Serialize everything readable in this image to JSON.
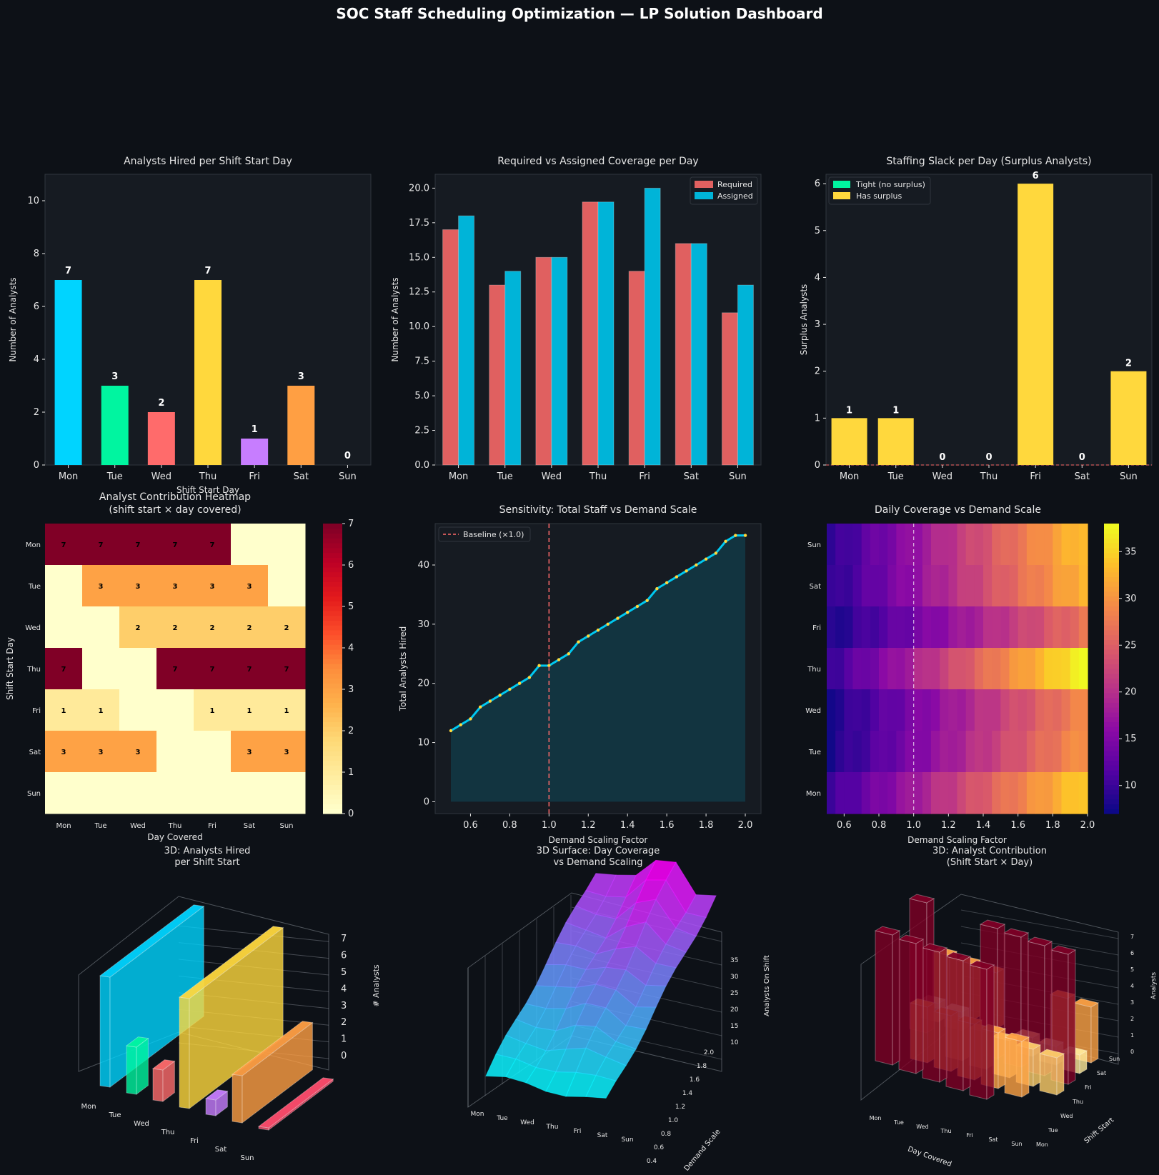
{
  "dashboard": {
    "title": "SOC Staff Scheduling Optimization — LP Solution Dashboard"
  },
  "colors": {
    "background": "#0d1117",
    "panel": "#161b22",
    "grid": "#30363d",
    "text": "#e6e6e6",
    "required": "#e06060",
    "assigned": "#00b4d8",
    "tight": "#00f5a0",
    "surplus": "#ffd83d",
    "sensitivity_line": "#00c8f0",
    "sensitivity_point": "#ffd83d",
    "baseline": "#ff6b6b"
  },
  "chart_data": [
    {
      "id": "hired",
      "type": "bar",
      "title": "Analysts Hired per Shift Start Day",
      "xlabel": "Shift Start Day",
      "ylabel": "Number of Analysts",
      "categories": [
        "Mon",
        "Tue",
        "Wed",
        "Thu",
        "Fri",
        "Sat",
        "Sun"
      ],
      "values": [
        7,
        3,
        2,
        7,
        1,
        3,
        0
      ],
      "bar_colors": [
        "#00d4ff",
        "#00f5a0",
        "#ff6b6b",
        "#ffd83d",
        "#c77dff",
        "#ff9f43",
        "#ff4d6d"
      ],
      "ylim": [
        0,
        11
      ],
      "yticks": [
        0,
        2,
        4,
        6,
        8,
        10
      ]
    },
    {
      "id": "coverage",
      "type": "bar",
      "title": "Required vs Assigned Coverage per Day",
      "xlabel": "",
      "ylabel": "Number of Analysts",
      "categories": [
        "Mon",
        "Tue",
        "Wed",
        "Thu",
        "Fri",
        "Sat",
        "Sun"
      ],
      "series": [
        {
          "name": "Required",
          "values": [
            17,
            13,
            15,
            19,
            14,
            16,
            11
          ]
        },
        {
          "name": "Assigned",
          "values": [
            18,
            14,
            15,
            19,
            20,
            16,
            13
          ]
        }
      ],
      "ylim": [
        0,
        21
      ],
      "yticks": [
        "0.0",
        "2.5",
        "5.0",
        "7.5",
        "10.0",
        "12.5",
        "15.0",
        "17.5",
        "20.0"
      ],
      "legend": "top-right"
    },
    {
      "id": "slack",
      "type": "bar",
      "title": "Staffing Slack per Day (Surplus Analysts)",
      "xlabel": "",
      "ylabel": "Surplus Analysts",
      "categories": [
        "Mon",
        "Tue",
        "Wed",
        "Thu",
        "Fri",
        "Sat",
        "Sun"
      ],
      "values": [
        1,
        1,
        0,
        0,
        6,
        0,
        2
      ],
      "legend_entries": [
        "Tight (no surplus)",
        "Has surplus"
      ],
      "ylim": [
        0,
        6.2
      ],
      "yticks": [
        0,
        1,
        2,
        3,
        4,
        5,
        6
      ],
      "legend": "top-left"
    },
    {
      "id": "heatmap",
      "type": "heatmap",
      "title": "Analyst Contribution Heatmap",
      "subtitle": "(shift start × day covered)",
      "xlabel": "Day Covered",
      "ylabel": "Shift Start Day",
      "x_categories": [
        "Mon",
        "Tue",
        "Wed",
        "Thu",
        "Fri",
        "Sat",
        "Sun"
      ],
      "y_categories": [
        "Mon",
        "Tue",
        "Wed",
        "Thu",
        "Fri",
        "Sat",
        "Sun"
      ],
      "matrix": [
        [
          7,
          7,
          7,
          7,
          7,
          0,
          0
        ],
        [
          0,
          3,
          3,
          3,
          3,
          3,
          0
        ],
        [
          0,
          0,
          2,
          2,
          2,
          2,
          2
        ],
        [
          7,
          0,
          0,
          7,
          7,
          7,
          7
        ],
        [
          1,
          1,
          0,
          0,
          1,
          1,
          1
        ],
        [
          3,
          3,
          3,
          0,
          0,
          3,
          3
        ],
        [
          0,
          0,
          0,
          0,
          0,
          0,
          0
        ]
      ],
      "colorbar_ticks": [
        0,
        1,
        2,
        3,
        4,
        5,
        6,
        7
      ],
      "colormap": "YlOrRd"
    },
    {
      "id": "sensitivity",
      "type": "line",
      "title": "Sensitivity: Total Staff vs Demand Scale",
      "xlabel": "Demand Scaling Factor",
      "ylabel": "Total Analysts Hired",
      "series": [
        {
          "name": "Total Analysts Hired",
          "x": [
            0.5,
            0.55,
            0.6,
            0.65,
            0.7,
            0.75,
            0.8,
            0.85,
            0.9,
            0.95,
            1.0,
            1.05,
            1.1,
            1.15,
            1.2,
            1.25,
            1.3,
            1.35,
            1.4,
            1.45,
            1.5,
            1.55,
            1.6,
            1.65,
            1.7,
            1.75,
            1.8,
            1.85,
            1.9,
            1.95,
            2.0
          ],
          "y": [
            12,
            13,
            14,
            16,
            17,
            18,
            19,
            20,
            21,
            23,
            23,
            24,
            25,
            27,
            28,
            29,
            30,
            31,
            32,
            33,
            34,
            36,
            37,
            38,
            39,
            40,
            41,
            42,
            44,
            45,
            45
          ]
        }
      ],
      "baseline_label": "Baseline (×1.0)",
      "baseline_x": 1.0,
      "xlim": [
        0.42,
        2.08
      ],
      "ylim": [
        -2,
        47
      ],
      "xticks": [
        "0.6",
        "0.8",
        "1.0",
        "1.2",
        "1.4",
        "1.6",
        "1.8",
        "2.0"
      ],
      "yticks": [
        0,
        10,
        20,
        30,
        40
      ],
      "legend": "top-left"
    },
    {
      "id": "coverage_scale",
      "type": "heatmap",
      "title": "Daily Coverage vs Demand Scale",
      "xlabel": "Demand Scaling Factor",
      "ylabel": "",
      "y_categories": [
        "Sun",
        "Sat",
        "Fri",
        "Thu",
        "Wed",
        "Tue",
        "Mon"
      ],
      "xlim": [
        0.5,
        2.0
      ],
      "xticks": [
        "0.6",
        "0.8",
        "1.0",
        "1.2",
        "1.4",
        "1.6",
        "1.8",
        "2.0"
      ],
      "colorbar_ticks": [
        10,
        15,
        20,
        25,
        30,
        35
      ],
      "colorbar_range": [
        7,
        38
      ],
      "colormap": "plasma",
      "baseline_x": 1.0,
      "rows_start": [
        9,
        9,
        8,
        10,
        8,
        8,
        10
      ],
      "rows_end": [
        34,
        33,
        27,
        38,
        29,
        30,
        35
      ]
    },
    {
      "id": "bars3d",
      "type": "bar",
      "title": "3D: Analysts Hired",
      "subtitle": "per Shift Start",
      "zlabel": "# Analysts",
      "categories": [
        "Mon",
        "Tue",
        "Wed",
        "Thu",
        "Fri",
        "Sat",
        "Sun"
      ],
      "zticks": [
        0,
        1,
        2,
        3,
        4,
        5,
        6,
        7
      ],
      "values": [
        7,
        3,
        2,
        7,
        1,
        3,
        0
      ]
    },
    {
      "id": "surface3d",
      "type": "area",
      "title": "3D Surface: Day Coverage",
      "subtitle": "vs Demand Scaling",
      "zlabel": "Analysts On Shift",
      "ylabel": "Demand Scale",
      "categories": [
        "Mon",
        "Tue",
        "Wed",
        "Thu",
        "Fri",
        "Sat",
        "Sun"
      ],
      "yticks": [
        "0.4",
        "0.6",
        "0.8",
        "1.0",
        "1.2",
        "1.4",
        "1.6",
        "1.8",
        "2.0"
      ],
      "zticks": [
        10,
        15,
        20,
        25,
        30,
        35
      ]
    },
    {
      "id": "contrib3d",
      "type": "bar",
      "title": "3D: Analyst Contribution",
      "subtitle": "(Shift Start × Day)",
      "zlabel": "Analysts",
      "xlabel": "Day Covered",
      "ylabel": "Shift Start",
      "categories": [
        "Mon",
        "Tue",
        "Wed",
        "Thu",
        "Fri",
        "Sat",
        "Sun"
      ],
      "zticks": [
        0,
        1,
        2,
        3,
        4,
        5,
        6,
        7
      ]
    }
  ]
}
